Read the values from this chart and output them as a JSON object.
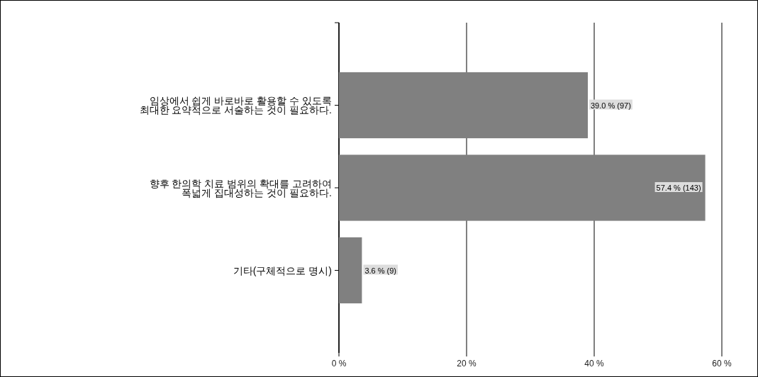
{
  "chart_data": {
    "type": "bar",
    "orientation": "horizontal",
    "categories": [
      "임상에서 쉽게 바로바로 활용할 수 있도록\n최대한 요약적으로 서술하는 것이 필요하다.",
      "향후 한의학 치료 범위의 확대를 고려하여\n폭넓게 집대성하는 것이 필요하다.",
      "기타(구체적으로 명시)"
    ],
    "values": [
      39.0,
      57.4,
      3.6
    ],
    "value_labels": [
      "39.0 % (97)",
      "57.4 % (143)",
      "3.6 % (9)"
    ],
    "color": "#808080",
    "xlim": [
      0,
      60
    ],
    "xticks": [
      {
        "value": 0,
        "label": "0 %"
      },
      {
        "value": 20,
        "label": "20 %"
      },
      {
        "value": 40,
        "label": "40 %"
      },
      {
        "value": 60,
        "label": "60 %"
      }
    ],
    "grid": "x"
  }
}
